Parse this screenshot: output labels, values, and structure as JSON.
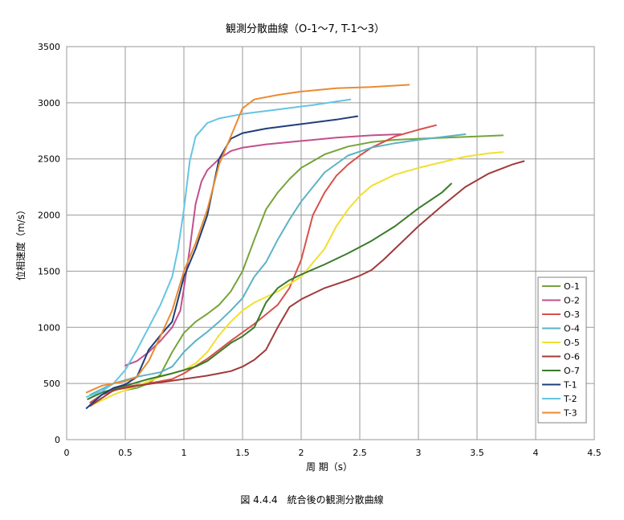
{
  "chart_data": {
    "type": "line",
    "title": "観測分散曲線（O-1～7, T-1～3）",
    "xlabel": "周 期（s）",
    "ylabel": "位相速度（m/s）",
    "xlim": [
      0,
      4.5
    ],
    "ylim": [
      0,
      3500
    ],
    "xticks": [
      "0",
      "0.5",
      "1",
      "1.5",
      "2",
      "2.5",
      "3",
      "3.5",
      "4",
      "4.5"
    ],
    "yticks": [
      "0",
      "500",
      "1000",
      "1500",
      "2000",
      "2500",
      "3000",
      "3500"
    ],
    "grid": true,
    "legend_position": "right",
    "series": [
      {
        "name": "O-1",
        "color": "#77a33a",
        "points": [
          [
            0.5,
            440
          ],
          [
            0.6,
            460
          ],
          [
            0.7,
            500
          ],
          [
            0.8,
            580
          ],
          [
            0.9,
            780
          ],
          [
            1.0,
            950
          ],
          [
            1.1,
            1050
          ],
          [
            1.2,
            1120
          ],
          [
            1.3,
            1200
          ],
          [
            1.4,
            1320
          ],
          [
            1.5,
            1500
          ],
          [
            1.6,
            1780
          ],
          [
            1.7,
            2050
          ],
          [
            1.8,
            2200
          ],
          [
            1.9,
            2320
          ],
          [
            2.0,
            2420
          ],
          [
            2.2,
            2540
          ],
          [
            2.4,
            2610
          ],
          [
            2.6,
            2650
          ],
          [
            2.8,
            2670
          ],
          [
            3.0,
            2680
          ],
          [
            3.5,
            2700
          ],
          [
            3.72,
            2710
          ]
        ]
      },
      {
        "name": "O-2",
        "color": "#c0508c",
        "points": [
          [
            0.5,
            660
          ],
          [
            0.6,
            700
          ],
          [
            0.7,
            780
          ],
          [
            0.8,
            880
          ],
          [
            0.9,
            1000
          ],
          [
            0.97,
            1150
          ],
          [
            1.0,
            1350
          ],
          [
            1.05,
            1700
          ],
          [
            1.1,
            2100
          ],
          [
            1.15,
            2300
          ],
          [
            1.2,
            2400
          ],
          [
            1.3,
            2500
          ],
          [
            1.4,
            2570
          ],
          [
            1.5,
            2600
          ],
          [
            1.7,
            2630
          ],
          [
            2.0,
            2660
          ],
          [
            2.3,
            2690
          ],
          [
            2.6,
            2710
          ],
          [
            2.85,
            2720
          ]
        ]
      },
      {
        "name": "O-3",
        "color": "#d8504a",
        "points": [
          [
            0.2,
            330
          ],
          [
            0.3,
            400
          ],
          [
            0.5,
            470
          ],
          [
            0.7,
            500
          ],
          [
            0.9,
            540
          ],
          [
            1.0,
            590
          ],
          [
            1.2,
            720
          ],
          [
            1.4,
            880
          ],
          [
            1.6,
            1030
          ],
          [
            1.8,
            1200
          ],
          [
            1.9,
            1350
          ],
          [
            2.0,
            1600
          ],
          [
            2.05,
            1800
          ],
          [
            2.1,
            2000
          ],
          [
            2.2,
            2200
          ],
          [
            2.3,
            2350
          ],
          [
            2.4,
            2450
          ],
          [
            2.5,
            2530
          ],
          [
            2.6,
            2600
          ],
          [
            2.7,
            2650
          ],
          [
            2.8,
            2700
          ],
          [
            3.0,
            2760
          ],
          [
            3.15,
            2800
          ]
        ]
      },
      {
        "name": "O-4",
        "color": "#5bb3c3",
        "points": [
          [
            0.2,
            400
          ],
          [
            0.4,
            500
          ],
          [
            0.6,
            560
          ],
          [
            0.8,
            600
          ],
          [
            0.9,
            650
          ],
          [
            1.0,
            780
          ],
          [
            1.1,
            880
          ],
          [
            1.2,
            960
          ],
          [
            1.3,
            1050
          ],
          [
            1.4,
            1150
          ],
          [
            1.5,
            1260
          ],
          [
            1.6,
            1450
          ],
          [
            1.7,
            1580
          ],
          [
            1.8,
            1780
          ],
          [
            1.9,
            1960
          ],
          [
            2.0,
            2120
          ],
          [
            2.2,
            2380
          ],
          [
            2.4,
            2530
          ],
          [
            2.6,
            2600
          ],
          [
            2.8,
            2640
          ],
          [
            3.0,
            2670
          ],
          [
            3.4,
            2720
          ]
        ]
      },
      {
        "name": "O-5",
        "color": "#f0e030",
        "points": [
          [
            0.2,
            300
          ],
          [
            0.4,
            400
          ],
          [
            0.6,
            480
          ],
          [
            0.8,
            560
          ],
          [
            1.0,
            620
          ],
          [
            1.1,
            680
          ],
          [
            1.2,
            780
          ],
          [
            1.3,
            930
          ],
          [
            1.4,
            1050
          ],
          [
            1.5,
            1150
          ],
          [
            1.6,
            1220
          ],
          [
            1.8,
            1320
          ],
          [
            2.0,
            1450
          ],
          [
            2.2,
            1700
          ],
          [
            2.3,
            1900
          ],
          [
            2.4,
            2050
          ],
          [
            2.5,
            2170
          ],
          [
            2.6,
            2260
          ],
          [
            2.8,
            2360
          ],
          [
            3.0,
            2420
          ],
          [
            3.2,
            2470
          ],
          [
            3.4,
            2520
          ],
          [
            3.6,
            2550
          ],
          [
            3.72,
            2560
          ]
        ]
      },
      {
        "name": "O-6",
        "color": "#a03a3a",
        "points": [
          [
            0.2,
            300
          ],
          [
            0.4,
            440
          ],
          [
            0.6,
            480
          ],
          [
            0.8,
            510
          ],
          [
            1.0,
            540
          ],
          [
            1.2,
            570
          ],
          [
            1.3,
            590
          ],
          [
            1.4,
            610
          ],
          [
            1.5,
            650
          ],
          [
            1.6,
            710
          ],
          [
            1.7,
            800
          ],
          [
            1.8,
            1000
          ],
          [
            1.9,
            1180
          ],
          [
            2.0,
            1250
          ],
          [
            2.1,
            1300
          ],
          [
            2.2,
            1350
          ],
          [
            2.4,
            1420
          ],
          [
            2.5,
            1460
          ],
          [
            2.6,
            1510
          ],
          [
            2.7,
            1600
          ],
          [
            2.8,
            1700
          ],
          [
            3.0,
            1900
          ],
          [
            3.2,
            2080
          ],
          [
            3.4,
            2250
          ],
          [
            3.6,
            2370
          ],
          [
            3.8,
            2450
          ],
          [
            3.9,
            2480
          ]
        ]
      },
      {
        "name": "O-7",
        "color": "#3a7a2a",
        "points": [
          [
            0.18,
            360
          ],
          [
            0.3,
            420
          ],
          [
            0.5,
            480
          ],
          [
            0.7,
            540
          ],
          [
            0.9,
            590
          ],
          [
            1.0,
            620
          ],
          [
            1.1,
            650
          ],
          [
            1.2,
            700
          ],
          [
            1.3,
            780
          ],
          [
            1.4,
            860
          ],
          [
            1.5,
            920
          ],
          [
            1.6,
            1000
          ],
          [
            1.7,
            1220
          ],
          [
            1.8,
            1350
          ],
          [
            1.9,
            1420
          ],
          [
            2.0,
            1470
          ],
          [
            2.2,
            1560
          ],
          [
            2.4,
            1660
          ],
          [
            2.6,
            1770
          ],
          [
            2.8,
            1900
          ],
          [
            3.0,
            2060
          ],
          [
            3.2,
            2200
          ],
          [
            3.28,
            2280
          ]
        ]
      },
      {
        "name": "T-1",
        "color": "#1f3f7a",
        "points": [
          [
            0.17,
            280
          ],
          [
            0.3,
            400
          ],
          [
            0.4,
            460
          ],
          [
            0.5,
            490
          ],
          [
            0.6,
            560
          ],
          [
            0.7,
            800
          ],
          [
            0.8,
            930
          ],
          [
            0.9,
            1050
          ],
          [
            1.0,
            1450
          ],
          [
            1.1,
            1700
          ],
          [
            1.2,
            2000
          ],
          [
            1.3,
            2500
          ],
          [
            1.4,
            2680
          ],
          [
            1.5,
            2730
          ],
          [
            1.7,
            2770
          ],
          [
            2.0,
            2810
          ],
          [
            2.3,
            2850
          ],
          [
            2.48,
            2880
          ]
        ]
      },
      {
        "name": "T-2",
        "color": "#66c4e4",
        "points": [
          [
            0.17,
            380
          ],
          [
            0.3,
            430
          ],
          [
            0.4,
            500
          ],
          [
            0.5,
            620
          ],
          [
            0.6,
            800
          ],
          [
            0.7,
            1000
          ],
          [
            0.8,
            1200
          ],
          [
            0.9,
            1450
          ],
          [
            0.95,
            1700
          ],
          [
            1.0,
            2050
          ],
          [
            1.05,
            2480
          ],
          [
            1.1,
            2700
          ],
          [
            1.2,
            2820
          ],
          [
            1.3,
            2860
          ],
          [
            1.5,
            2900
          ],
          [
            1.8,
            2940
          ],
          [
            2.1,
            2980
          ],
          [
            2.42,
            3030
          ]
        ]
      },
      {
        "name": "T-3",
        "color": "#ec8a30",
        "points": [
          [
            0.17,
            420
          ],
          [
            0.3,
            480
          ],
          [
            0.5,
            520
          ],
          [
            0.6,
            560
          ],
          [
            0.7,
            700
          ],
          [
            0.8,
            920
          ],
          [
            0.9,
            1150
          ],
          [
            1.0,
            1500
          ],
          [
            1.1,
            1750
          ],
          [
            1.2,
            2050
          ],
          [
            1.3,
            2450
          ],
          [
            1.4,
            2700
          ],
          [
            1.5,
            2950
          ],
          [
            1.6,
            3030
          ],
          [
            1.8,
            3070
          ],
          [
            2.0,
            3100
          ],
          [
            2.3,
            3130
          ],
          [
            2.6,
            3140
          ],
          [
            2.92,
            3160
          ]
        ]
      }
    ]
  },
  "caption": "図 4.4.4　統合後の観測分散曲線"
}
